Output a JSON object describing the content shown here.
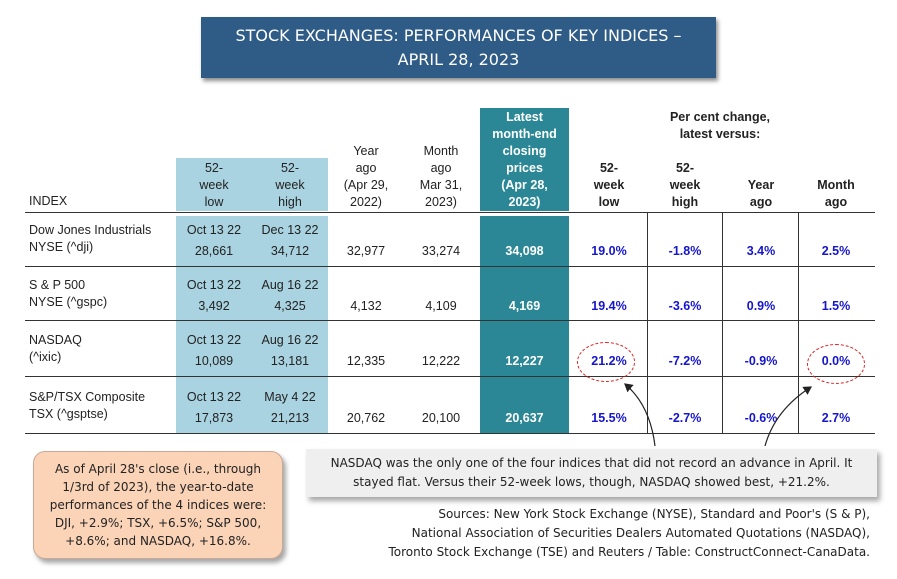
{
  "title": {
    "line1": "STOCK EXCHANGES: PERFORMANCES OF KEY INDICES –",
    "line2": "APRIL 28, 2023"
  },
  "pct_group_header": {
    "line1": "Per cent change,",
    "line2": "latest versus:"
  },
  "headers": {
    "index": "INDEX",
    "low52": [
      "52-",
      "week",
      "low"
    ],
    "high52": [
      "52-",
      "week",
      "high"
    ],
    "year": [
      "Year",
      "ago",
      "(Apr 29,",
      "2022)"
    ],
    "month": [
      "Month",
      "ago",
      "Mar 31,",
      "2023)"
    ],
    "latest": [
      "Latest",
      "month-end",
      "closing",
      "prices",
      "(Apr 28,",
      "2023)"
    ],
    "pct_low": [
      "52-",
      "week",
      "low"
    ],
    "pct_high": [
      "52-",
      "week",
      "high"
    ],
    "pct_year": [
      "Year",
      "ago"
    ],
    "pct_month": [
      "Month",
      "ago"
    ]
  },
  "rows": [
    {
      "name": "Dow Jones Industrials",
      "ticker": "NYSE (^dji)",
      "low_date": "Oct 13 22",
      "low_val": "28,661",
      "high_date": "Dec 13 22",
      "high_val": "34,712",
      "year": "32,977",
      "month": "33,274",
      "latest": "34,098",
      "pct_low": "19.0%",
      "pct_high": "-1.8%",
      "pct_year": "3.4%",
      "pct_month": "2.5%"
    },
    {
      "name": "S & P 500",
      "ticker": "NYSE (^gspc)",
      "low_date": "Oct 13 22",
      "low_val": "3,492",
      "high_date": "Aug 16 22",
      "high_val": "4,325",
      "year": "4,132",
      "month": "4,109",
      "latest": "4,169",
      "pct_low": "19.4%",
      "pct_high": "-3.6%",
      "pct_year": "0.9%",
      "pct_month": "1.5%"
    },
    {
      "name": "NASDAQ",
      "ticker": "(^ixic)",
      "low_date": "Oct 13 22",
      "low_val": "10,089",
      "high_date": "Aug 16 22",
      "high_val": "13,181",
      "year": "12,335",
      "month": "12,222",
      "latest": "12,227",
      "pct_low": "21.2%",
      "pct_high": "-7.2%",
      "pct_year": "-0.9%",
      "pct_month": "0.0%"
    },
    {
      "name": "S&P/TSX Composite",
      "ticker": "TSX (^gsptse)",
      "low_date": "Oct 13 22",
      "low_val": "17,873",
      "high_date": "May 4 22",
      "high_val": "21,213",
      "year": "20,762",
      "month": "20,100",
      "latest": "20,637",
      "pct_low": "15.5%",
      "pct_high": "-2.7%",
      "pct_year": "-0.6%",
      "pct_month": "2.7%"
    }
  ],
  "note_left": "As of April 28's close (i.e., through 1/3rd of 2023), the year-to-date performances of the 4 indices were: DJI, +2.9%; TSX, +6.5%; S&P 500, +8.6%; and NASDAQ, +16.8%.",
  "note_mid": "NASDAQ was the only one of the four indices that did not record an advance in April. It stayed flat. Versus their 52-week lows, though, NASDAQ showed best, +21.2%.",
  "sources": {
    "line1": "Sources: New York Stock Exchange (NYSE), Standard and Poor's (S & P),",
    "line2": "National Association of Securities Dealers Automated Quotations (NASDAQ),",
    "line3": "Toronto Stock Exchange (TSE) and Reuters / Table: ConstructConnect-CanaData."
  },
  "colors": {
    "title_bg": "#2f5b87",
    "range_bg": "#a9d3e0",
    "latest_bg": "#2b8795",
    "pct_text": "#1515cc",
    "circle": "#e02020",
    "note_left_bg": "#fbd4b8",
    "note_mid_bg": "#efefef"
  }
}
